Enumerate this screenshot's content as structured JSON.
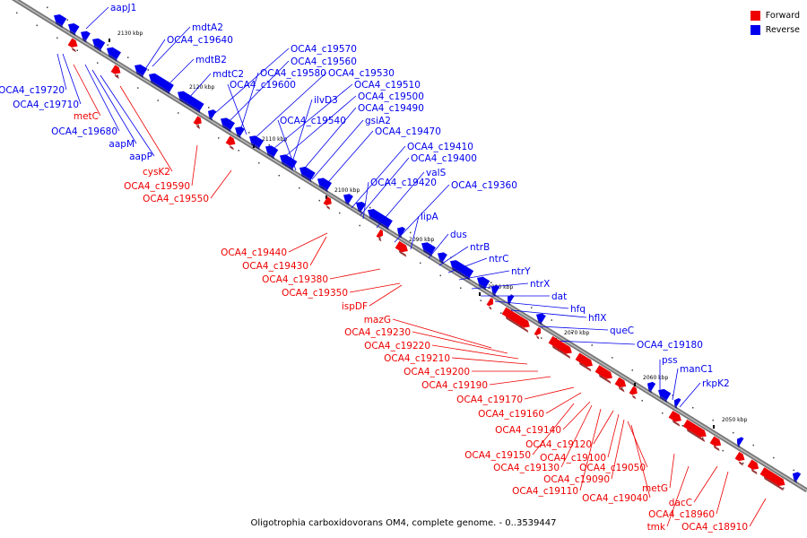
{
  "caption": "Oligotrophia carboxidovorans OM4, complete genome. - 0..3539447",
  "legend": [
    {
      "label": "Forward",
      "color": "#ee0000"
    },
    {
      "label": "Reverse",
      "color": "#0000ee"
    }
  ],
  "ticks": [
    "2130 kbp",
    "2120 kbp",
    "2110 kbp",
    "2100 kbp",
    "2090 kbp",
    "2080 kbp",
    "2070 kbp",
    "2060 kbp",
    "2050 kbp"
  ],
  "reverse_labels": [
    "aapJ1",
    "mdtA2",
    "OCA4_c19640",
    "mdtB2",
    "mdtC2",
    "OCA4_c19570",
    "OCA4_c19560",
    "OCA4_c19580",
    "OCA4_c19530",
    "OCA4_c19600",
    "OCA4_c19510",
    "OCA4_c19500",
    "ilvD3",
    "OCA4_c19490",
    "OCA4_c19540",
    "gsiA2",
    "OCA4_c19470",
    "OCA4_c19410",
    "OCA4_c19400",
    "valS",
    "OCA4_c19420",
    "OCA4_c19360",
    "lipA",
    "dus",
    "ntrB",
    "ntrC",
    "ntrY",
    "ntrX",
    "dat",
    "hfq",
    "hflX",
    "queC",
    "OCA4_c19180",
    "pss",
    "manC1",
    "rkpK2",
    "OCA4_c19720",
    "OCA4_c19710",
    "OCA4_c19680",
    "aapM",
    "aapP"
  ],
  "forward_labels": [
    "metC",
    "cysK2",
    "OCA4_c19590",
    "OCA4_c19550",
    "OCA4_c19440",
    "OCA4_c19430",
    "OCA4_c19380",
    "OCA4_c19350",
    "ispDF",
    "mazG",
    "OCA4_c19230",
    "OCA4_c19220",
    "OCA4_c19210",
    "OCA4_c19200",
    "OCA4_c19190",
    "OCA4_c19170",
    "OCA4_c19160",
    "OCA4_c19140",
    "OCA4_c19120",
    "OCA4_c19150",
    "OCA4_c19100",
    "OCA4_c19050",
    "OCA4_c19130",
    "OCA4_c19090",
    "OCA4_c19110",
    "OCA4_c19040",
    "metG",
    "dacC",
    "OCA4_c18960",
    "tmk",
    "OCA4_c18910"
  ]
}
